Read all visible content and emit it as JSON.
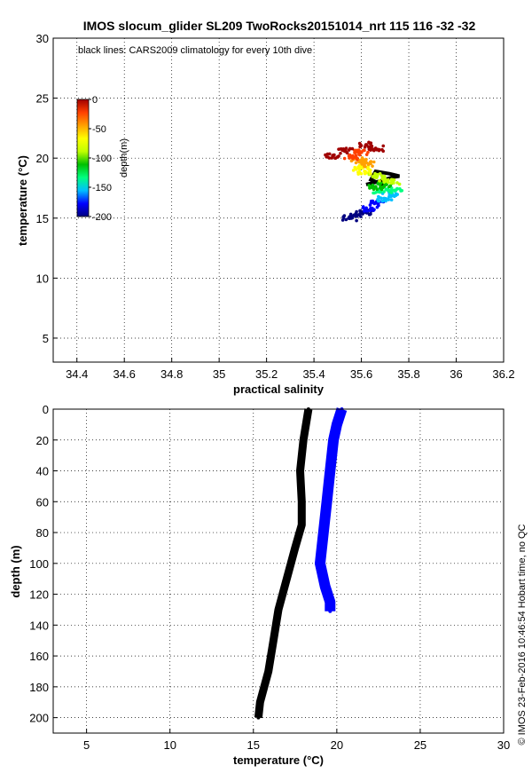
{
  "figure": {
    "title": "IMOS slocum_glider SL209 TwoRocks20151014_nrt 115  116  -32  -32",
    "stamp": "© IMOS 23-Feb-2016 10:46:54 Hobart time, no QC"
  },
  "chart_data": [
    {
      "type": "scatter",
      "xlabel": "practical salinity",
      "ylabel": "temperature (°C)",
      "xlim": [
        34.3,
        36.2
      ],
      "ylim": [
        3,
        30
      ],
      "xticks": [
        "34.4",
        "34.6",
        "34.8",
        "35",
        "35.2",
        "35.4",
        "35.6",
        "35.8",
        "36",
        "36.2"
      ],
      "yticks": [
        "5",
        "10",
        "15",
        "20",
        "25",
        "30"
      ],
      "grid": true,
      "annotation": "black lines: CARS2009 climatology for every 10th dive",
      "colorbar": {
        "label": "depth(m)",
        "range": [
          -200,
          0
        ],
        "ticks": [
          "0",
          "-50",
          "-100",
          "-150",
          "-200"
        ],
        "colormap": [
          "#000080",
          "#0000ff",
          "#00bfff",
          "#00ff80",
          "#00c000",
          "#c0ff00",
          "#ffff00",
          "#ffa000",
          "#ff4000",
          "#a00000"
        ]
      },
      "series": [
        {
          "name": "",
          "color_by": "depth",
          "points": [
            {
              "x": 35.55,
              "y": 15.0,
              "d": -200
            },
            {
              "x": 35.58,
              "y": 15.2,
              "d": -195
            },
            {
              "x": 35.61,
              "y": 15.5,
              "d": -190
            },
            {
              "x": 35.64,
              "y": 15.8,
              "d": -180
            },
            {
              "x": 35.67,
              "y": 16.2,
              "d": -170
            },
            {
              "x": 35.7,
              "y": 16.6,
              "d": -160
            },
            {
              "x": 35.72,
              "y": 17.0,
              "d": -150
            },
            {
              "x": 35.74,
              "y": 17.3,
              "d": -140
            },
            {
              "x": 35.68,
              "y": 17.2,
              "d": -130
            },
            {
              "x": 35.66,
              "y": 17.6,
              "d": -120
            },
            {
              "x": 35.7,
              "y": 17.8,
              "d": -110
            },
            {
              "x": 35.73,
              "y": 18.0,
              "d": -100
            },
            {
              "x": 35.69,
              "y": 18.3,
              "d": -90
            },
            {
              "x": 35.66,
              "y": 18.6,
              "d": -80
            },
            {
              "x": 35.62,
              "y": 18.8,
              "d": -70
            },
            {
              "x": 35.6,
              "y": 19.2,
              "d": -60
            },
            {
              "x": 35.63,
              "y": 19.5,
              "d": -50
            },
            {
              "x": 35.59,
              "y": 19.8,
              "d": -40
            },
            {
              "x": 35.56,
              "y": 20.1,
              "d": -30
            },
            {
              "x": 35.6,
              "y": 20.5,
              "d": -20
            },
            {
              "x": 35.66,
              "y": 20.8,
              "d": -10
            },
            {
              "x": 35.62,
              "y": 21.1,
              "d": -5
            },
            {
              "x": 35.53,
              "y": 20.6,
              "d": -3
            },
            {
              "x": 35.48,
              "y": 20.2,
              "d": 0
            }
          ]
        },
        {
          "name": "",
          "role": "climatology",
          "color": "#000000",
          "points": [
            {
              "x": 35.62,
              "y": 17.8
            },
            {
              "x": 35.68,
              "y": 18.1
            },
            {
              "x": 35.73,
              "y": 18.4
            },
            {
              "x": 35.76,
              "y": 18.5
            },
            {
              "x": 35.72,
              "y": 18.7
            },
            {
              "x": 35.66,
              "y": 18.9
            },
            {
              "x": 35.64,
              "y": 18.2
            },
            {
              "x": 35.7,
              "y": 17.7
            }
          ]
        }
      ]
    },
    {
      "type": "line",
      "xlabel": "temperature (°C)",
      "ylabel": "depth (m)",
      "xlim": [
        3,
        30
      ],
      "ylim": [
        210,
        0
      ],
      "xticks": [
        "5",
        "10",
        "15",
        "20",
        "25",
        "30"
      ],
      "yticks": [
        "0",
        "20",
        "40",
        "60",
        "80",
        "100",
        "120",
        "140",
        "160",
        "180",
        "200"
      ],
      "grid": true,
      "series": [
        {
          "name": "",
          "role": "climatology",
          "color": "#000000",
          "points": [
            {
              "x": 18.3,
              "y": 0
            },
            {
              "x": 18.0,
              "y": 20
            },
            {
              "x": 17.8,
              "y": 40
            },
            {
              "x": 17.9,
              "y": 60
            },
            {
              "x": 17.9,
              "y": 75
            },
            {
              "x": 17.5,
              "y": 90
            },
            {
              "x": 17.0,
              "y": 110
            },
            {
              "x": 16.5,
              "y": 130
            },
            {
              "x": 16.2,
              "y": 150
            },
            {
              "x": 15.9,
              "y": 170
            },
            {
              "x": 15.4,
              "y": 190
            },
            {
              "x": 15.3,
              "y": 200
            }
          ]
        },
        {
          "name": "",
          "color": "#0000ff",
          "points": [
            {
              "x": 20.3,
              "y": 0
            },
            {
              "x": 20.0,
              "y": 10
            },
            {
              "x": 19.8,
              "y": 20
            },
            {
              "x": 19.6,
              "y": 40
            },
            {
              "x": 19.4,
              "y": 60
            },
            {
              "x": 19.2,
              "y": 80
            },
            {
              "x": 19.0,
              "y": 100
            },
            {
              "x": 19.3,
              "y": 115
            },
            {
              "x": 19.6,
              "y": 125
            },
            {
              "x": 19.6,
              "y": 131
            }
          ]
        }
      ]
    }
  ]
}
